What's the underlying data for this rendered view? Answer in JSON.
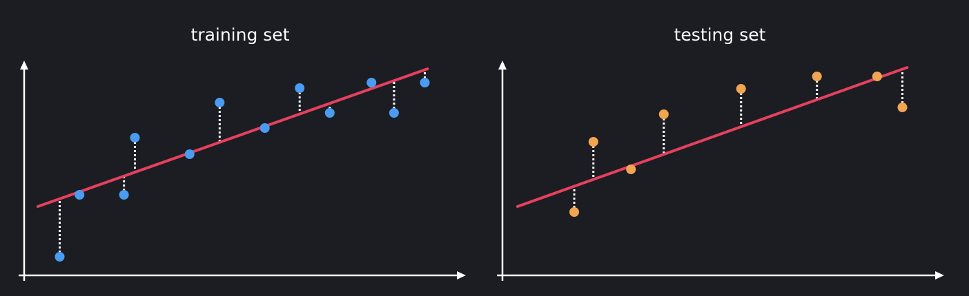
{
  "chart_data": [
    {
      "type": "scatter",
      "title": "training set",
      "x": [
        52,
        81,
        146,
        162,
        242,
        286,
        352,
        403,
        447,
        508,
        541,
        586
      ],
      "y": [
        27,
        117,
        117,
        200,
        176,
        251,
        214,
        272,
        236,
        280,
        236,
        280
      ],
      "color": "#4a9cf2",
      "xlim": [
        0,
        640
      ],
      "ylim": [
        0,
        312
      ],
      "fit": {
        "x": [
          20,
          590
        ],
        "y": [
          100,
          300
        ],
        "color": "#e6405f"
      },
      "residuals": true
    },
    {
      "type": "scatter",
      "title": "testing set",
      "x": [
        105,
        133,
        188,
        236,
        349,
        460,
        548,
        585
      ],
      "y": [
        92,
        194,
        154,
        234,
        271,
        289,
        289,
        244
      ],
      "color": "#f2a550",
      "xlim": [
        0,
        640
      ],
      "ylim": [
        0,
        312
      ],
      "fit": {
        "x": [
          22,
          592
        ],
        "y": [
          100,
          302
        ],
        "color": "#e6405f"
      },
      "residuals": true
    }
  ]
}
